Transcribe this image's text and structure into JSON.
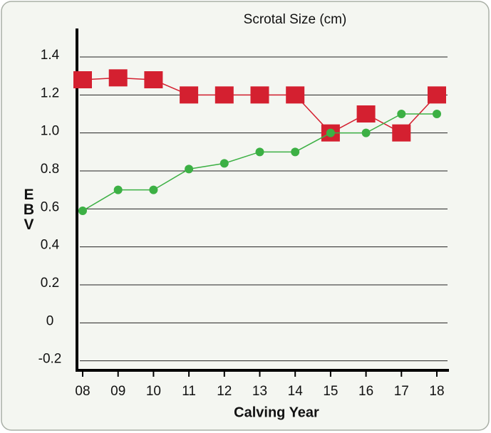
{
  "chart_data": {
    "type": "line",
    "title": "Scrotal Size (cm)",
    "x_label": "Calving Year",
    "y_label": "EBV",
    "categories": [
      "08",
      "09",
      "10",
      "11",
      "12",
      "13",
      "14",
      "15",
      "16",
      "17",
      "18"
    ],
    "series": [
      {
        "color": "#d42030",
        "marker": "square",
        "values": [
          1.28,
          1.29,
          1.28,
          1.2,
          1.2,
          1.2,
          1.2,
          1.0,
          1.1,
          1.0,
          1.2
        ]
      },
      {
        "color": "#3cb044",
        "marker": "circle",
        "values": [
          0.59,
          0.7,
          0.7,
          0.81,
          0.84,
          0.9,
          0.9,
          1.0,
          1.0,
          1.1,
          1.1
        ]
      }
    ],
    "ylim": [
      -0.25,
      1.55
    ],
    "yticks": [
      -0.2,
      0,
      0.2,
      0.4,
      0.6,
      0.8,
      {
        "value": 1,
        "label": "1.0"
      },
      1.2,
      1.4
    ],
    "grid": true
  }
}
